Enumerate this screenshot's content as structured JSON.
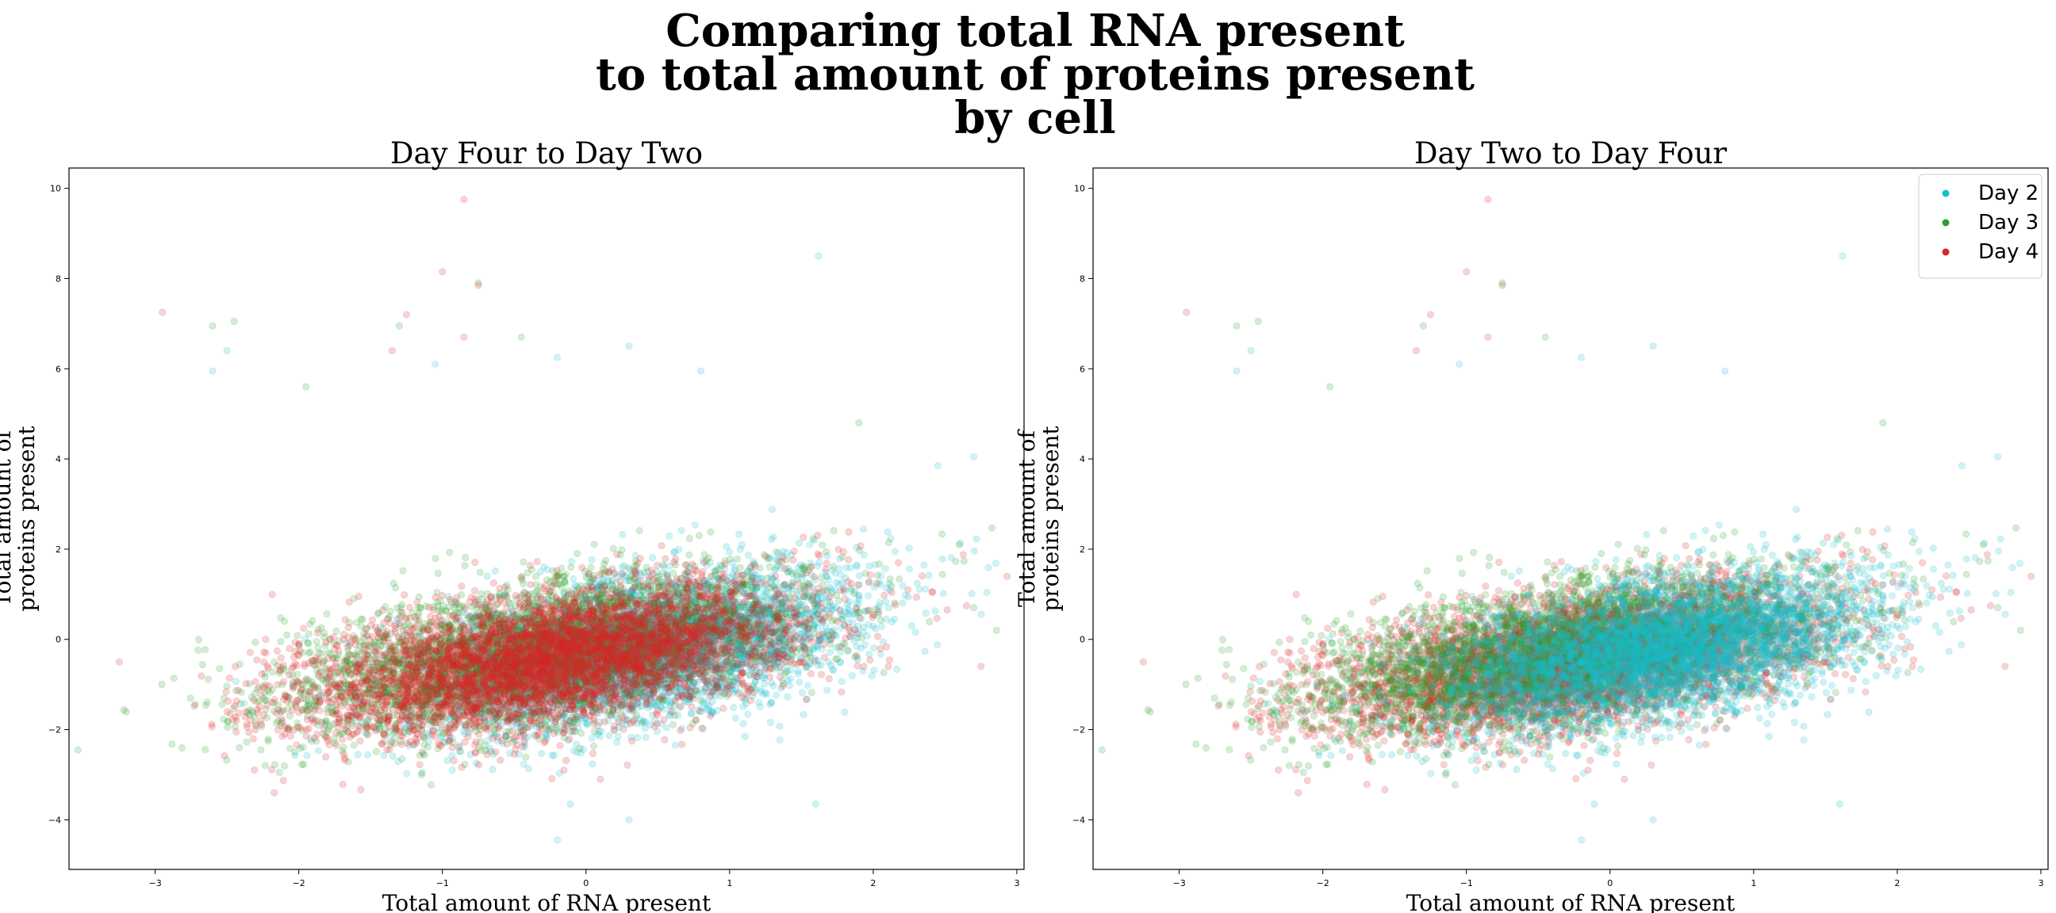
{
  "chart_title_lines": [
    "Comparing total RNA present",
    "to total amount of proteins present",
    "by cell"
  ],
  "colors": {
    "Day 2": "#17becf",
    "Day 3": "#2ca02c",
    "Day 4": "#d62728"
  },
  "chart_data": [
    {
      "type": "scatter",
      "title": "Day Four to Day Two",
      "xlabel": "Total amount of RNA present",
      "ylabel": "Total amount of proteins present",
      "ylabel_lines": [
        "Total amount of",
        "proteins present"
      ],
      "xlim": [
        -3.6,
        3.05
      ],
      "ylim": [
        -5.1,
        10.45
      ],
      "xticks": [
        -3,
        -2,
        -1,
        0,
        1,
        2,
        3
      ],
      "yticks": [
        -4,
        -2,
        0,
        2,
        4,
        6,
        8,
        10
      ],
      "draw_order": [
        "Day 2",
        "Day 3",
        "Day 4"
      ],
      "legend": null,
      "series": [
        {
          "name": "Day 2",
          "color": "#17becf",
          "marker_alpha": 0.2,
          "distribution": {
            "x_mean": 0.35,
            "x_sd": 0.75,
            "y_mean": -0.25,
            "y_sd": 0.75,
            "slope": 0.55,
            "approx_points": 9000
          },
          "notable_points": [
            [
              1.62,
              8.5
            ],
            [
              -2.5,
              6.4
            ],
            [
              -2.6,
              5.95
            ],
            [
              0.3,
              6.5
            ],
            [
              0.8,
              5.95
            ],
            [
              -0.2,
              6.25
            ],
            [
              -1.05,
              6.1
            ],
            [
              1.6,
              -3.65
            ],
            [
              0.3,
              -4.0
            ],
            [
              -0.2,
              -4.45
            ],
            [
              2.45,
              3.85
            ],
            [
              2.7,
              4.05
            ]
          ]
        },
        {
          "name": "Day 3",
          "color": "#2ca02c",
          "marker_alpha": 0.2,
          "distribution": {
            "x_mean": -0.35,
            "x_sd": 0.9,
            "y_mean": -0.3,
            "y_sd": 0.75,
            "slope": 0.5,
            "approx_points": 7000
          },
          "notable_points": [
            [
              -2.6,
              6.95
            ],
            [
              -2.45,
              7.05
            ],
            [
              -1.3,
              6.95
            ],
            [
              -0.45,
              6.7
            ],
            [
              -0.75,
              7.9
            ],
            [
              2.6,
              2.1
            ],
            [
              2.7,
              0.7
            ],
            [
              1.9,
              4.8
            ],
            [
              -1.95,
              5.6
            ]
          ]
        },
        {
          "name": "Day 4",
          "color": "#d62728",
          "marker_alpha": 0.2,
          "distribution": {
            "x_mean": -0.2,
            "x_sd": 0.85,
            "y_mean": -0.45,
            "y_sd": 0.7,
            "slope": 0.45,
            "approx_points": 11000
          },
          "notable_points": [
            [
              -0.85,
              9.75
            ],
            [
              -1.0,
              8.15
            ],
            [
              -0.75,
              7.85
            ],
            [
              -1.25,
              7.2
            ],
            [
              -2.95,
              7.25
            ],
            [
              -0.85,
              6.7
            ],
            [
              -1.35,
              6.4
            ],
            [
              2.75,
              -0.6
            ],
            [
              -3.25,
              -0.5
            ],
            [
              0.1,
              -3.1
            ]
          ]
        }
      ]
    },
    {
      "type": "scatter",
      "title": "Day Two to Day Four",
      "xlabel": "Total amount of RNA present",
      "ylabel": "Total amount of proteins present",
      "ylabel_lines": [
        "Total amount of",
        "proteins present"
      ],
      "xlim": [
        -3.6,
        3.05
      ],
      "ylim": [
        -5.1,
        10.45
      ],
      "xticks": [
        -3,
        -2,
        -1,
        0,
        1,
        2,
        3
      ],
      "yticks": [
        -4,
        -2,
        0,
        2,
        4,
        6,
        8,
        10
      ],
      "draw_order": [
        "Day 4",
        "Day 3",
        "Day 2"
      ],
      "legend": {
        "placement": "upper-right",
        "entries": [
          "Day 2",
          "Day 3",
          "Day 4"
        ]
      },
      "series": [
        {
          "name": "Day 2",
          "color": "#17becf",
          "marker_alpha": 0.2,
          "distribution": {
            "x_mean": 0.35,
            "x_sd": 0.75,
            "y_mean": -0.25,
            "y_sd": 0.75,
            "slope": 0.55,
            "approx_points": 9000
          },
          "notable_points": [
            [
              1.62,
              8.5
            ],
            [
              -2.5,
              6.4
            ],
            [
              -2.6,
              5.95
            ],
            [
              0.3,
              6.5
            ],
            [
              0.8,
              5.95
            ],
            [
              -0.2,
              6.25
            ],
            [
              -1.05,
              6.1
            ],
            [
              1.6,
              -3.65
            ],
            [
              0.3,
              -4.0
            ],
            [
              -0.2,
              -4.45
            ],
            [
              2.45,
              3.85
            ],
            [
              2.7,
              4.05
            ]
          ]
        },
        {
          "name": "Day 3",
          "color": "#2ca02c",
          "marker_alpha": 0.2,
          "distribution": {
            "x_mean": -0.35,
            "x_sd": 0.9,
            "y_mean": -0.3,
            "y_sd": 0.75,
            "slope": 0.5,
            "approx_points": 7000
          },
          "notable_points": [
            [
              -2.6,
              6.95
            ],
            [
              -2.45,
              7.05
            ],
            [
              -1.3,
              6.95
            ],
            [
              -0.45,
              6.7
            ],
            [
              -0.75,
              7.9
            ],
            [
              2.6,
              2.1
            ],
            [
              2.7,
              0.7
            ],
            [
              1.9,
              4.8
            ],
            [
              -1.95,
              5.6
            ]
          ]
        },
        {
          "name": "Day 4",
          "color": "#d62728",
          "marker_alpha": 0.2,
          "distribution": {
            "x_mean": -0.2,
            "x_sd": 0.85,
            "y_mean": -0.45,
            "y_sd": 0.7,
            "slope": 0.45,
            "approx_points": 11000
          },
          "notable_points": [
            [
              -0.85,
              9.75
            ],
            [
              -1.0,
              8.15
            ],
            [
              -0.75,
              7.85
            ],
            [
              -1.25,
              7.2
            ],
            [
              -2.95,
              7.25
            ],
            [
              -0.85,
              6.7
            ],
            [
              -1.35,
              6.4
            ],
            [
              2.75,
              -0.6
            ],
            [
              -3.25,
              -0.5
            ],
            [
              0.1,
              -3.1
            ]
          ]
        }
      ]
    }
  ]
}
